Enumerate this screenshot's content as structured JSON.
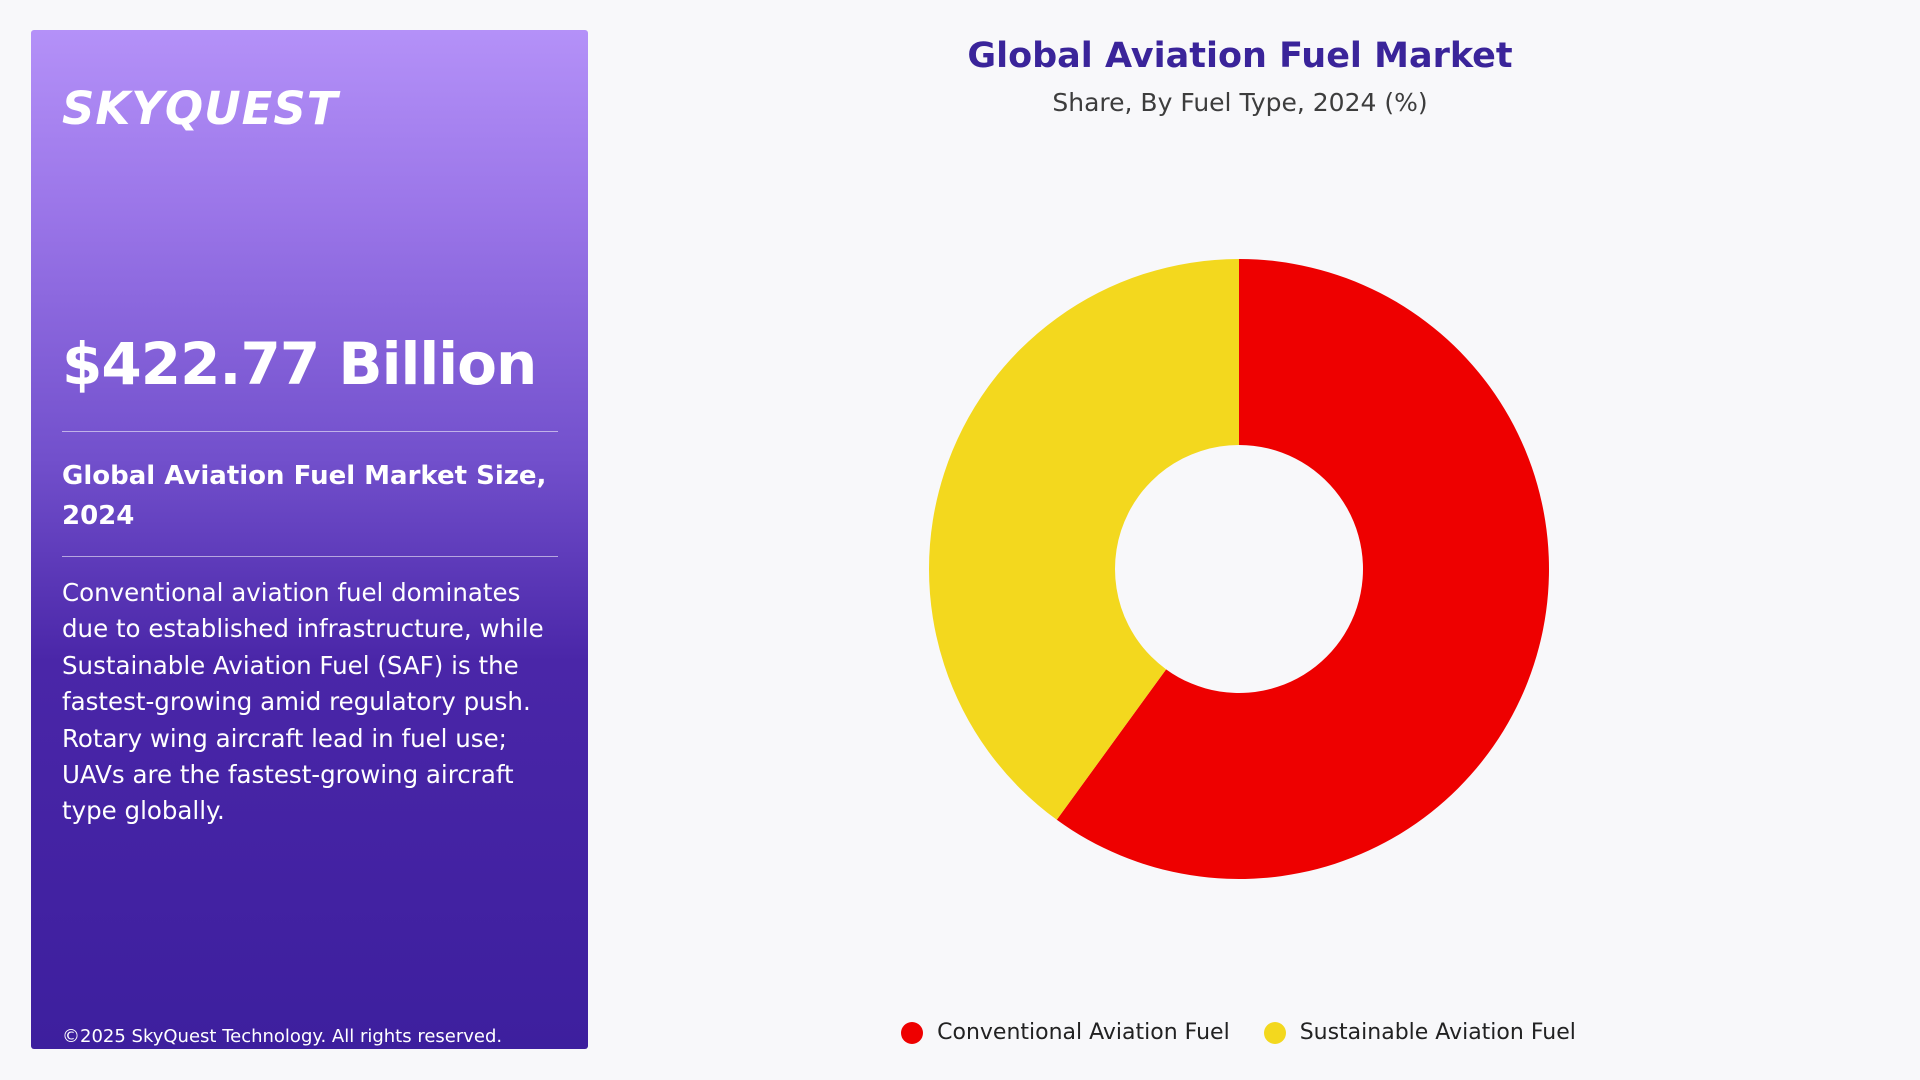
{
  "panel": {
    "brand": "SKYQUEST",
    "market_value": "$422.77 Billion",
    "market_size_label": "Global Aviation Fuel Market Size, 2024",
    "summary": "Conventional aviation fuel dominates due to established infrastructure, while Sustainable Aviation Fuel (SAF) is the fastest-growing amid regulatory push. Rotary wing aircraft lead in fuel use; UAVs are the fastest-growing aircraft type globally.",
    "copyright": "©2025 SkyQuest Technology. All rights reserved."
  },
  "chart_data": {
    "type": "pie",
    "title": "Global Aviation Fuel Market",
    "subtitle": "Share, By Fuel Type, 2024 (%)",
    "categories": [
      "Conventional Aviation Fuel",
      "Sustainable Aviation Fuel"
    ],
    "values": [
      60,
      40
    ],
    "colors": [
      "#ee0000",
      "#f3d81e"
    ],
    "donut": true,
    "legend_position": "bottom"
  }
}
